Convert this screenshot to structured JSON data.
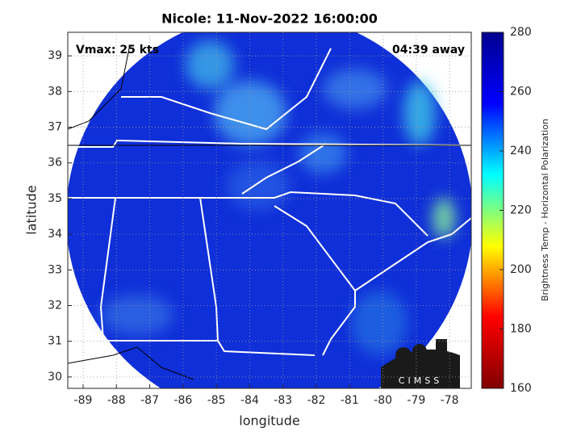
{
  "chart_data": {
    "type": "map",
    "title": "Nicole: 11-Nov-2022 16:00:00",
    "annotations": [
      "Vmax: 25 kts",
      "04:39 away"
    ],
    "x_label": "longitude",
    "y_label": "latitude",
    "xlim": [
      -89.46,
      -77.35
    ],
    "xticks": [
      -89,
      -88,
      -87,
      -86,
      -85,
      -84,
      -83,
      -82,
      -81,
      -80,
      -79,
      -78
    ],
    "ylim": [
      29.68,
      39.66
    ],
    "yticks": [
      30,
      31,
      32,
      33,
      34,
      35,
      36,
      37,
      38,
      39
    ],
    "grid": true,
    "colorbar": {
      "label": "Brightness Temp - Horizontal Polarization",
      "clim": [
        160,
        280
      ],
      "ticks": [
        160,
        180,
        200,
        220,
        240,
        260,
        280
      ],
      "colormap": [
        "#800000",
        "#ff0000",
        "#ffff00",
        "#00ffff",
        "#0000ff",
        "#00008f"
      ]
    },
    "logo": "CIMSS"
  }
}
